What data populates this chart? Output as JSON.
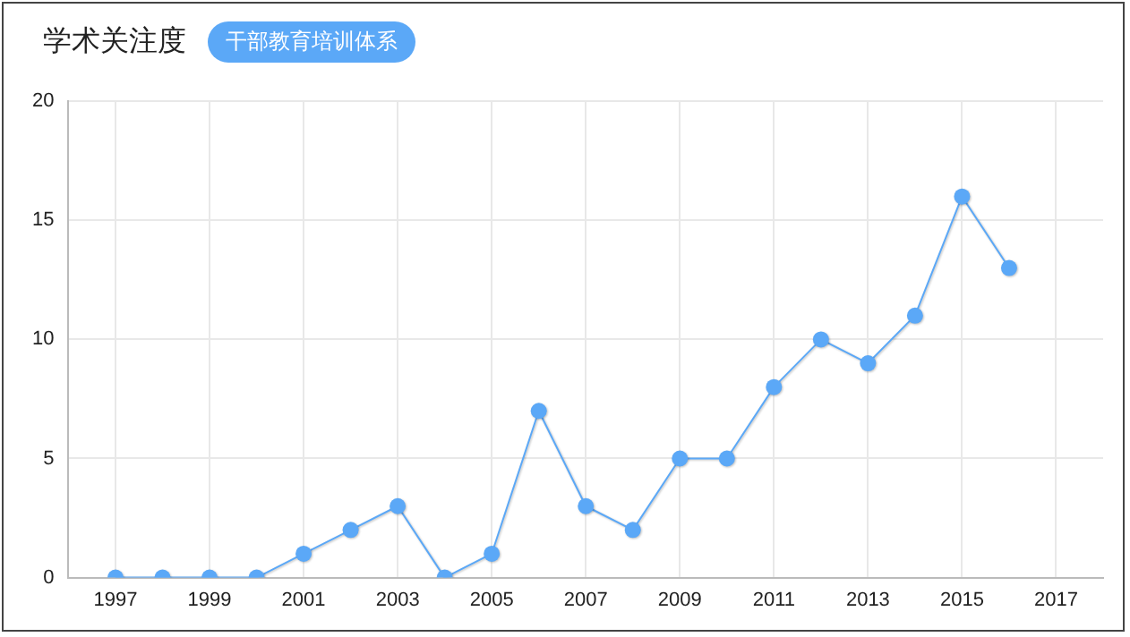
{
  "chart_data": {
    "type": "line",
    "title": "学术关注度",
    "subtitle": "干部教育培训体系",
    "x": [
      1997,
      1998,
      1999,
      2000,
      2001,
      2002,
      2003,
      2004,
      2005,
      2006,
      2007,
      2008,
      2009,
      2010,
      2011,
      2012,
      2013,
      2014,
      2015,
      2016
    ],
    "series": [
      {
        "color": "#5ba8f7",
        "values": [
          0,
          0,
          0,
          0,
          1,
          2,
          3,
          0,
          1,
          7,
          3,
          2,
          5,
          5,
          8,
          10,
          9,
          11,
          16,
          13
        ]
      }
    ],
    "xlim": [
      1996,
      2018
    ],
    "xticks": [
      1997,
      1999,
      2001,
      2003,
      2005,
      2007,
      2009,
      2011,
      2013,
      2015,
      2017
    ],
    "ylim": [
      0,
      20
    ],
    "yticks": [
      0,
      5,
      10,
      15,
      20
    ],
    "grid": true,
    "legend": false,
    "marker": "circle",
    "line_style": "solid"
  }
}
